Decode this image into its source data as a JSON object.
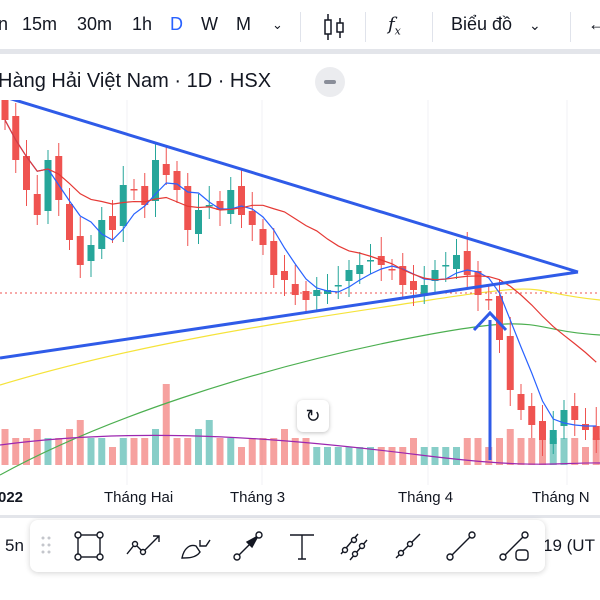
{
  "toolbar": {
    "intervals": [
      "n",
      "15m",
      "30m",
      "1h",
      "D",
      "W",
      "M"
    ],
    "active_interval": "D",
    "chart_type_label": "Biểu đồ",
    "accent": "#2962ff"
  },
  "legend": {
    "title": "Hàng Hải Việt Nam · 1D · HSX"
  },
  "time_axis": {
    "labels": [
      "022",
      "Tháng Hai",
      "Tháng 3",
      "Tháng 4",
      "Tháng N"
    ]
  },
  "bottom": {
    "left_text": "5n",
    "right_text": "19 (UT"
  },
  "colors": {
    "up": "#26a69a",
    "down": "#ef5350",
    "ma_fast": "#2962ff",
    "ma_slow": "#e53935",
    "trendline": "#2f5be8"
  },
  "candles_close": [
    40,
    36,
    33,
    30.5,
    36,
    32,
    28,
    25.5,
    27.5,
    30,
    29,
    33.5,
    33,
    31.5,
    36,
    34.5,
    33,
    29,
    31,
    31.5,
    31,
    33,
    30.5,
    29.5,
    27.5,
    24.5,
    24,
    22.5,
    22,
    23,
    23,
    23.5,
    25,
    25.5,
    26,
    25.5,
    25,
    23.5,
    23,
    23.5,
    25,
    25.5,
    26.5,
    24.5,
    22.5,
    22,
    18,
    13,
    11,
    9.5,
    8,
    9,
    11,
    10,
    9,
    8
  ],
  "volumes": [
    4,
    3,
    3,
    4,
    3,
    3,
    4,
    5,
    3,
    3,
    2,
    3,
    3,
    3,
    4,
    9,
    3,
    3,
    4,
    5,
    3,
    3,
    2,
    3,
    3,
    3,
    4,
    3,
    3,
    2,
    2,
    2,
    2,
    2,
    2,
    2,
    2,
    2,
    3,
    2,
    2,
    2,
    2,
    3,
    3,
    2,
    3,
    4,
    3,
    3,
    4,
    3,
    3,
    3,
    2,
    3
  ]
}
